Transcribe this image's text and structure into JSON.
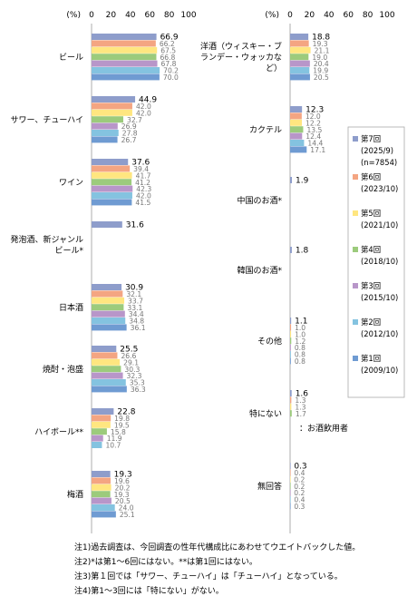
{
  "colors": {
    "第7回": "#8E9DCB",
    "第6回": "#F4A582",
    "第5回": "#FFE680",
    "第4回": "#9CCB7C",
    "第3回": "#B896C9",
    "第2回": "#84C3E0",
    "第1回": "#6F9BD2"
  },
  "chart_data": [
    {
      "type": "bar",
      "orientation": "horizontal",
      "unit_label": "(%)",
      "xlim": [
        0,
        100
      ],
      "xticks": [
        0,
        20,
        40,
        60,
        80,
        100
      ],
      "categories": [
        "ビール",
        "サワー、チューハイ",
        "ワイン",
        "発泡酒、新ジャンルビール*",
        "日本酒",
        "焼酎・泡盛",
        "ハイボール**",
        "梅酒"
      ],
      "category_lines": [
        [
          "ビール"
        ],
        [
          "サワー、チューハイ"
        ],
        [
          "ワイン"
        ],
        [
          "発泡酒、新ジャンル",
          "ビール*"
        ],
        [
          "日本酒"
        ],
        [
          "焼酎・泡盛"
        ],
        [
          "ハイボール**"
        ],
        [
          "梅酒"
        ]
      ],
      "series": [
        {
          "name": "第7回",
          "values": [
            66.9,
            44.9,
            37.6,
            31.6,
            30.9,
            25.5,
            22.8,
            19.3
          ]
        },
        {
          "name": "第6回",
          "values": [
            66.2,
            42.0,
            39.4,
            null,
            32.1,
            26.6,
            19.8,
            19.6
          ]
        },
        {
          "name": "第5回",
          "values": [
            67.5,
            42.0,
            41.7,
            null,
            33.7,
            29.1,
            19.5,
            20.2
          ]
        },
        {
          "name": "第4回",
          "values": [
            66.8,
            32.7,
            41.2,
            null,
            33.1,
            30.3,
            15.8,
            19.3
          ]
        },
        {
          "name": "第3回",
          "values": [
            67.8,
            26.9,
            42.3,
            null,
            34.4,
            32.3,
            11.9,
            20.5
          ]
        },
        {
          "name": "第2回",
          "values": [
            70.2,
            27.8,
            42.0,
            null,
            34.8,
            35.3,
            10.7,
            24.0
          ]
        },
        {
          "name": "第1回",
          "values": [
            70.0,
            26.7,
            41.5,
            null,
            36.1,
            36.3,
            null,
            25.1
          ]
        }
      ]
    },
    {
      "type": "bar",
      "orientation": "horizontal",
      "unit_label": "(%)",
      "xlim": [
        0,
        100
      ],
      "xticks": [
        0,
        20,
        40,
        60,
        80,
        100
      ],
      "categories": [
        "洋酒（ウィスキー・ブランデー・ウォッカなど）",
        "カクテル",
        "中国のお酒*",
        "韓国のお酒*",
        "その他",
        "特にない",
        "無回答"
      ],
      "category_lines": [
        [
          "洋酒（ウィスキー・ブ",
          "ランデー・ウォッカな",
          "ど）"
        ],
        [
          "カクテル"
        ],
        [
          "中国のお酒*"
        ],
        [
          "韓国のお酒*"
        ],
        [
          "その他"
        ],
        [
          "特にない"
        ],
        [
          "無回答"
        ]
      ],
      "series": [
        {
          "name": "第7回",
          "values": [
            18.8,
            12.3,
            1.9,
            1.8,
            1.1,
            1.6,
            0.3
          ]
        },
        {
          "name": "第6回",
          "values": [
            19.3,
            12.0,
            null,
            null,
            1.0,
            1.3,
            0.4
          ]
        },
        {
          "name": "第5回",
          "values": [
            21.1,
            12.2,
            null,
            null,
            1.0,
            1.3,
            0.2
          ]
        },
        {
          "name": "第4回",
          "values": [
            19.0,
            13.5,
            null,
            null,
            1.2,
            1.7,
            0.2
          ]
        },
        {
          "name": "第3回",
          "values": [
            20.4,
            12.4,
            null,
            null,
            0.8,
            null,
            0.2
          ]
        },
        {
          "name": "第2回",
          "values": [
            19.9,
            14.4,
            null,
            null,
            0.8,
            null,
            0.4
          ]
        },
        {
          "name": "第1回",
          "values": [
            20.5,
            17.1,
            null,
            null,
            0.8,
            null,
            0.3
          ]
        }
      ]
    }
  ],
  "legend": {
    "items": [
      {
        "lines": [
          "第7回",
          "(2025/9)",
          "(n=7854)"
        ]
      },
      {
        "lines": [
          "第6回",
          "(2023/10)"
        ]
      },
      {
        "lines": [
          "第5回",
          "(2021/10)"
        ]
      },
      {
        "lines": [
          "第4回",
          "(2018/10)"
        ]
      },
      {
        "lines": [
          "第3回",
          "(2015/10)"
        ]
      },
      {
        "lines": [
          "第2回",
          "(2012/10)"
        ]
      },
      {
        "lines": [
          "第1回",
          "(2009/10)"
        ]
      }
    ]
  },
  "basis_note": "：お酒飲用者",
  "notes": [
    "注1)過去調査は、今回調査の性年代構成比にあわせてウエイトバックした値。",
    "注2)*は第1～6回にはない。**は第1回にはない。",
    "注3)第１回では「サワー、チューハイ」は「チューハイ」となっている。",
    "注4)第1～3回には「特にない」がない。"
  ]
}
